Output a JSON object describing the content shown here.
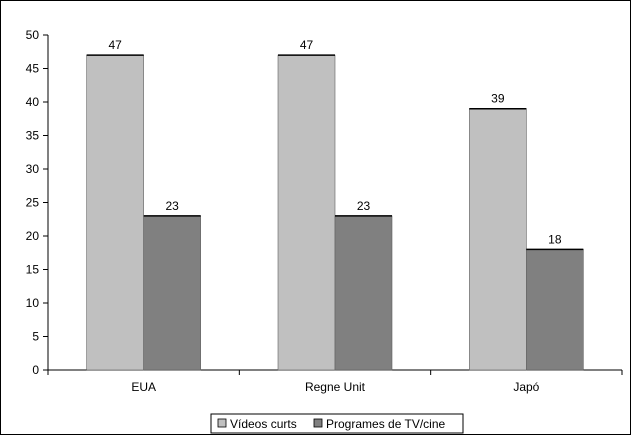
{
  "chart_data": {
    "type": "bar",
    "categories": [
      "EUA",
      "Regne Unit",
      "Japó"
    ],
    "series": [
      {
        "name": "Vídeos curts",
        "values": [
          47,
          47,
          39
        ],
        "color": "#c0c0c0"
      },
      {
        "name": "Programes de TV/cine",
        "values": [
          23,
          23,
          18
        ],
        "color": "#808080"
      }
    ],
    "ylim": [
      0,
      50
    ],
    "yticks": [
      0,
      5,
      10,
      15,
      20,
      25,
      30,
      35,
      40,
      45,
      50
    ],
    "data_labels": true,
    "grid": false,
    "legend_position": "bottom"
  }
}
